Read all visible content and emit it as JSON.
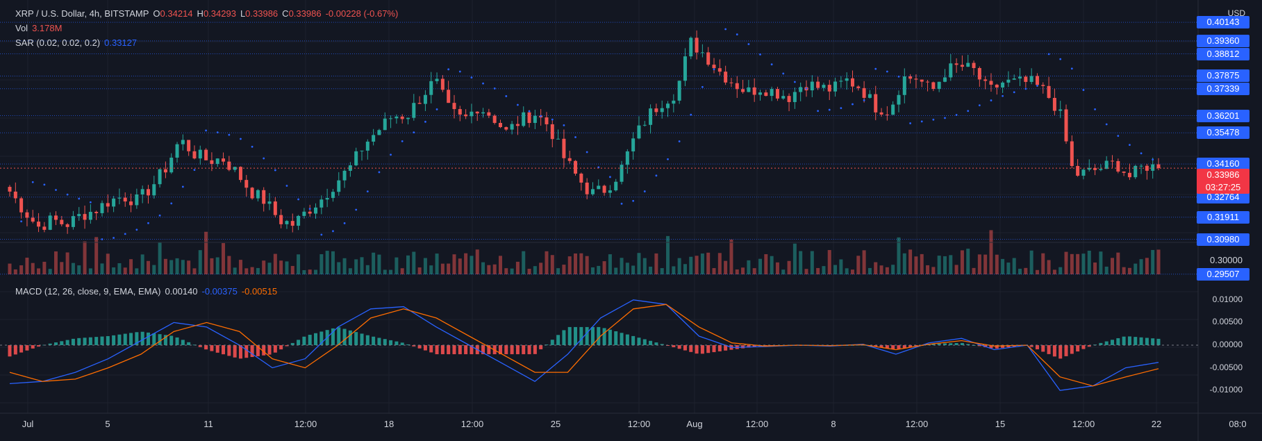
{
  "header": {
    "symbol": "XRP / U.S. Dollar, 4h, BITSTAMP",
    "o_label": "O",
    "o_value": "0.34214",
    "h_label": "H",
    "h_value": "0.34293",
    "l_label": "L",
    "l_value": "0.33986",
    "c_label": "C",
    "c_value": "0.33986",
    "change": "-0.00228 (-0.67%)"
  },
  "vol": {
    "label": "Vol",
    "value": "3.178M"
  },
  "sar": {
    "label": "SAR (0.02, 0.02, 0.2)",
    "value": "0.33127"
  },
  "macd": {
    "label": "MACD (12, 26, close, 9, EMA, EMA)",
    "hist_value": "0.00140",
    "macd_value": "-0.00375",
    "signal_value": "-0.00515"
  },
  "currency": "USD",
  "price_badges": [
    "0.40143",
    "0.39360",
    "0.38812",
    "0.37875",
    "0.37339",
    "0.36201",
    "0.35478",
    "0.34160",
    "0.32764",
    "0.31911",
    "0.30980",
    "0.29507"
  ],
  "price_plain_tick": "0.30000",
  "last_price": {
    "price": "0.33986",
    "countdown": "03:27:25"
  },
  "macd_ticks": [
    "0.01000",
    "0.00500",
    "0.00000",
    "-0.00500",
    "-0.01000"
  ],
  "time_labels": [
    "Jul",
    "5",
    "11",
    "12:00",
    "18",
    "12:00",
    "25",
    "12:00",
    "Aug",
    "12:00",
    "8",
    "12:00",
    "15",
    "12:00",
    "22",
    "08:0"
  ],
  "colors": {
    "up": "#26a69a",
    "down": "#ef5350",
    "sar": "#2962ff",
    "macd": "#2962ff",
    "signal": "#ff6d00",
    "badge": "#2962ff",
    "last": "#f23645"
  },
  "chart_data": [
    {
      "type": "candlestick",
      "title": "XRP / U.S. Dollar, 4h, BITSTAMP",
      "ylabel": "USD",
      "ylim": [
        0.295,
        0.405
      ],
      "x_tick_labels": [
        "Jul",
        "5",
        "11",
        "12:00",
        "18",
        "12:00",
        "25",
        "12:00",
        "Aug",
        "12:00",
        "8",
        "12:00",
        "15",
        "12:00",
        "22",
        "08:0"
      ],
      "close_path": [
        0.33,
        0.322,
        0.315,
        0.318,
        0.316,
        0.32,
        0.322,
        0.326,
        0.328,
        0.326,
        0.332,
        0.34,
        0.352,
        0.346,
        0.343,
        0.344,
        0.338,
        0.33,
        0.326,
        0.318,
        0.316,
        0.322,
        0.327,
        0.334,
        0.34,
        0.35,
        0.356,
        0.362,
        0.362,
        0.37,
        0.377,
        0.364,
        0.36,
        0.366,
        0.362,
        0.355,
        0.36,
        0.363,
        0.358,
        0.345,
        0.336,
        0.329,
        0.331,
        0.338,
        0.352,
        0.362,
        0.368,
        0.372,
        0.393,
        0.388,
        0.381,
        0.376,
        0.372,
        0.374,
        0.372,
        0.37,
        0.376,
        0.374,
        0.373,
        0.377,
        0.374,
        0.366,
        0.364,
        0.378,
        0.378,
        0.372,
        0.381,
        0.383,
        0.381,
        0.372,
        0.376,
        0.376,
        0.376,
        0.372,
        0.364,
        0.337,
        0.338,
        0.34,
        0.342,
        0.336,
        0.341,
        0.34
      ],
      "sar_value": 0.33127,
      "last": 0.33986,
      "volume_label": "Vol 3.178M"
    },
    {
      "type": "line",
      "title": "MACD (12, 26, close, 9, EMA, EMA)",
      "ylim": [
        -0.0115,
        0.0115
      ],
      "series": [
        {
          "name": "MACD",
          "values": [
            -0.0085,
            -0.008,
            -0.006,
            -0.003,
            0.001,
            0.005,
            0.004,
            0.0,
            -0.005,
            -0.003,
            0.004,
            0.008,
            0.0085,
            0.004,
            0.0,
            -0.004,
            -0.008,
            -0.002,
            0.006,
            0.01,
            0.009,
            0.002,
            -0.0005,
            -0.0003,
            0.0,
            -0.0002,
            0.0002,
            -0.002,
            0.0005,
            0.0015,
            -0.001,
            0.0,
            -0.01,
            -0.009,
            -0.005,
            -0.0038
          ]
        },
        {
          "name": "Signal",
          "values": [
            -0.006,
            -0.008,
            -0.0075,
            -0.005,
            -0.002,
            0.003,
            0.005,
            0.003,
            -0.003,
            -0.005,
            0.0,
            0.006,
            0.008,
            0.006,
            0.002,
            -0.002,
            -0.006,
            -0.006,
            0.002,
            0.008,
            0.009,
            0.004,
            0.0005,
            -0.0002,
            0.0,
            -0.0001,
            0.0001,
            -0.001,
            0.0002,
            0.001,
            -0.0002,
            0.0,
            -0.007,
            -0.009,
            -0.007,
            -0.0052
          ]
        }
      ],
      "histogram_last": 0.0014
    }
  ]
}
